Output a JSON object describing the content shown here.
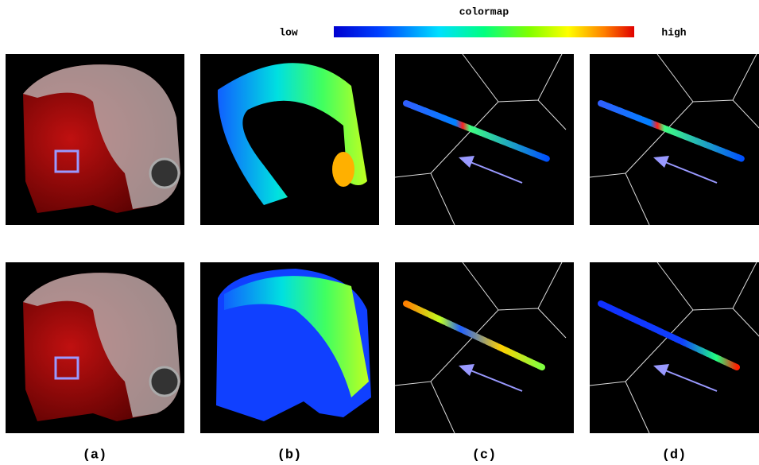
{
  "colorbar": {
    "title": "colormap",
    "low": "low",
    "high": "high"
  },
  "panels": [
    {
      "label": "(a)"
    },
    {
      "label": "(b)"
    },
    {
      "label": "(c)"
    },
    {
      "label": "(d)"
    }
  ]
}
